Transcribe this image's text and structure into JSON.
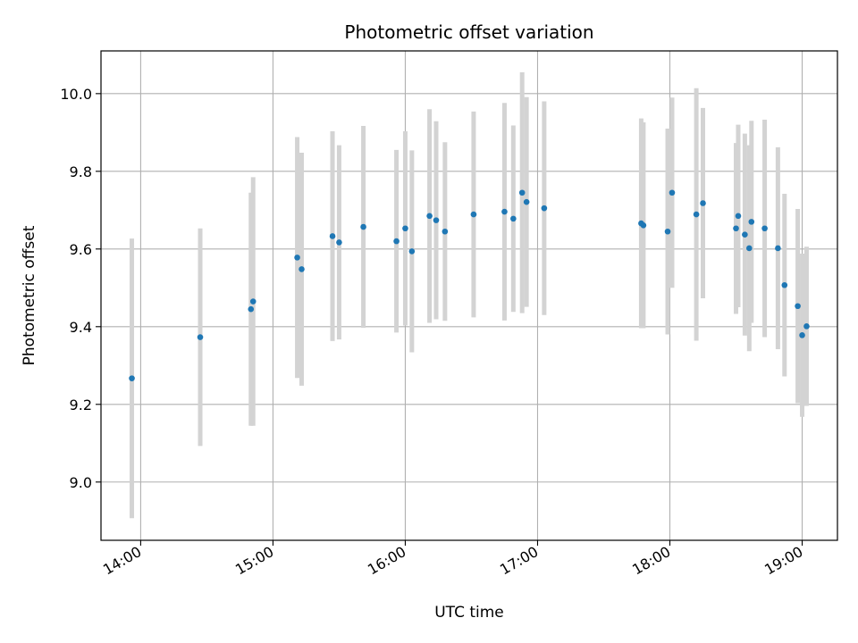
{
  "chart_data": {
    "type": "scatter",
    "title": "Photometric offset variation",
    "xlabel": "UTC time",
    "ylabel": "Photometric offset",
    "x_unit": "UTC time (HH:MM)",
    "x_ticks": [
      "14:00",
      "15:00",
      "16:00",
      "17:00",
      "18:00",
      "19:00"
    ],
    "y_ticks": [
      "9.0",
      "9.2",
      "9.4",
      "9.6",
      "9.8",
      "10.0"
    ],
    "xlim": [
      "13:42",
      "19:16"
    ],
    "ylim": [
      8.85,
      10.11
    ],
    "grid": true,
    "legend": "none",
    "colors": {
      "point": "#1f77b4",
      "errorbar": "#d3d3d3",
      "grid": "#b0b0b0"
    },
    "points": [
      {
        "x": "13:56",
        "y": 9.267,
        "err": 0.36
      },
      {
        "x": "14:27",
        "y": 9.373,
        "err": 0.28
      },
      {
        "x": "14:50",
        "y": 9.445,
        "err": 0.3
      },
      {
        "x": "14:51",
        "y": 9.465,
        "err": 0.32
      },
      {
        "x": "15:11",
        "y": 9.578,
        "err": 0.31
      },
      {
        "x": "15:13",
        "y": 9.548,
        "err": 0.3
      },
      {
        "x": "15:27",
        "y": 9.633,
        "err": 0.27
      },
      {
        "x": "15:30",
        "y": 9.617,
        "err": 0.25
      },
      {
        "x": "15:41",
        "y": 9.657,
        "err": 0.26
      },
      {
        "x": "15:56",
        "y": 9.62,
        "err": 0.235
      },
      {
        "x": "16:00",
        "y": 9.653,
        "err": 0.25
      },
      {
        "x": "16:03",
        "y": 9.594,
        "err": 0.26
      },
      {
        "x": "16:11",
        "y": 9.685,
        "err": 0.275
      },
      {
        "x": "16:14",
        "y": 9.674,
        "err": 0.255
      },
      {
        "x": "16:18",
        "y": 9.645,
        "err": 0.23
      },
      {
        "x": "16:31",
        "y": 9.689,
        "err": 0.265
      },
      {
        "x": "16:45",
        "y": 9.696,
        "err": 0.28
      },
      {
        "x": "16:49",
        "y": 9.678,
        "err": 0.24
      },
      {
        "x": "16:53",
        "y": 9.745,
        "err": 0.31
      },
      {
        "x": "16:55",
        "y": 9.721,
        "err": 0.27
      },
      {
        "x": "17:03",
        "y": 9.705,
        "err": 0.275
      },
      {
        "x": "17:47",
        "y": 9.666,
        "err": 0.27
      },
      {
        "x": "17:48",
        "y": 9.661,
        "err": 0.265
      },
      {
        "x": "17:59",
        "y": 9.645,
        "err": 0.265
      },
      {
        "x": "18:01",
        "y": 9.745,
        "err": 0.245
      },
      {
        "x": "18:12",
        "y": 9.689,
        "err": 0.325
      },
      {
        "x": "18:15",
        "y": 9.718,
        "err": 0.245
      },
      {
        "x": "18:30",
        "y": 9.653,
        "err": 0.22
      },
      {
        "x": "18:31",
        "y": 9.685,
        "err": 0.235
      },
      {
        "x": "18:34",
        "y": 9.637,
        "err": 0.26
      },
      {
        "x": "18:36",
        "y": 9.602,
        "err": 0.265
      },
      {
        "x": "18:37",
        "y": 9.67,
        "err": 0.26
      },
      {
        "x": "18:43",
        "y": 9.653,
        "err": 0.28
      },
      {
        "x": "18:49",
        "y": 9.602,
        "err": 0.26
      },
      {
        "x": "18:52",
        "y": 9.507,
        "err": 0.235
      },
      {
        "x": "18:58",
        "y": 9.453,
        "err": 0.25
      },
      {
        "x": "19:00",
        "y": 9.378,
        "err": 0.21
      },
      {
        "x": "19:02",
        "y": 9.401,
        "err": 0.205
      }
    ]
  }
}
